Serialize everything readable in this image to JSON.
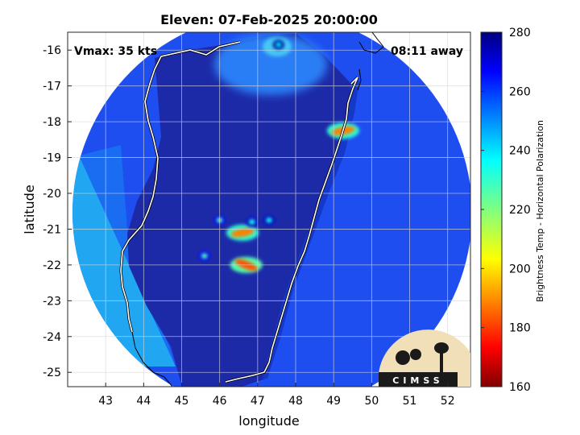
{
  "title": "Eleven: 07-Feb-2025 20:00:00",
  "vmax_label": "Vmax: 35 kts",
  "away_label": "08:11 away",
  "xlabel": "longitude",
  "ylabel": "latitude",
  "colorbar_label": "Brightness Temp - Horizontal Polarization",
  "logo_text": "CIMSS",
  "axes": {
    "xlim": [
      42.0,
      52.6
    ],
    "ylim": [
      -25.4,
      -15.5
    ],
    "xticks": [
      43,
      44,
      45,
      46,
      47,
      48,
      49,
      50,
      51,
      52
    ],
    "yticks": [
      -16,
      -17,
      -18,
      -19,
      -20,
      -21,
      -22,
      -23,
      -24,
      -25
    ],
    "grid": true
  },
  "colorbar": {
    "min": 160,
    "max": 280,
    "ticks": [
      160,
      180,
      200,
      220,
      240,
      260,
      280
    ],
    "colormap": "jet"
  },
  "swath": {
    "center_lon": 47.2,
    "center_lat": -20.7,
    "background_tb": 262,
    "land_tb": 272,
    "west_strip_tb": 245
  },
  "convective_cells": [
    {
      "lon": 46.6,
      "lat": -21.1,
      "tb": 190
    },
    {
      "lon": 46.7,
      "lat": -22.0,
      "tb": 185
    },
    {
      "lon": 45.6,
      "lat": -21.75,
      "tb": 225
    },
    {
      "lon": 46.0,
      "lat": -20.75,
      "tb": 225
    },
    {
      "lon": 46.85,
      "lat": -20.8,
      "tb": 230
    },
    {
      "lon": 47.3,
      "lat": -20.75,
      "tb": 232
    },
    {
      "lon": 49.25,
      "lat": -18.25,
      "tb": 190
    },
    {
      "lon": 47.55,
      "lat": -15.85,
      "tb": 238
    }
  ],
  "coastline_note_colors": {
    "coast": "#ffffff",
    "frame": "#000000"
  }
}
